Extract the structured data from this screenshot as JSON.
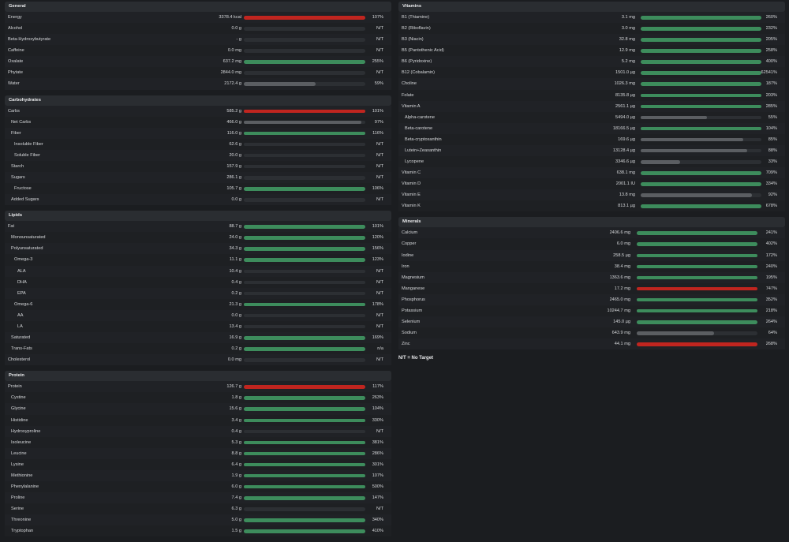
{
  "left_sections": [
    {
      "title": "General",
      "key": "general",
      "rows": [
        {
          "label": "Energy",
          "indent": 0,
          "value": "3378.4 kcal",
          "pct": "107%",
          "fill": 1.0,
          "color": "red"
        },
        {
          "label": "Alcohol",
          "indent": 0,
          "value": "0.0 g",
          "pct": "N/T",
          "fill": 0,
          "color": "none"
        },
        {
          "label": "Beta-Hydroxybutyrate",
          "indent": 0,
          "value": "- g",
          "pct": "N/T",
          "fill": 0,
          "color": "none"
        },
        {
          "label": "Caffeine",
          "indent": 0,
          "value": "0.0 mg",
          "pct": "N/T",
          "fill": 0,
          "color": "none"
        },
        {
          "label": "Oxalate",
          "indent": 0,
          "value": "637.2 mg",
          "pct": "255%",
          "fill": 1.0,
          "color": "green"
        },
        {
          "label": "Phytate",
          "indent": 0,
          "value": "2844.0 mg",
          "pct": "N/T",
          "fill": 0,
          "color": "none"
        },
        {
          "label": "Water",
          "indent": 0,
          "value": "2172.4 g",
          "pct": "59%",
          "fill": 0.59,
          "color": "gray"
        }
      ]
    },
    {
      "title": "Carbohydrates",
      "key": "carbs",
      "rows": [
        {
          "label": "Carbs",
          "indent": 0,
          "value": "585.2 g",
          "pct": "101%",
          "fill": 1.0,
          "color": "red"
        },
        {
          "label": "Net Carbs",
          "indent": 1,
          "value": "466.0 g",
          "pct": "97%",
          "fill": 0.97,
          "color": "gray"
        },
        {
          "label": "Fiber",
          "indent": 1,
          "value": "116.0 g",
          "pct": "116%",
          "fill": 1.0,
          "color": "green"
        },
        {
          "label": "Insoluble Fiber",
          "indent": 2,
          "value": "62.6 g",
          "pct": "N/T",
          "fill": 0,
          "color": "none"
        },
        {
          "label": "Soluble Fiber",
          "indent": 2,
          "value": "20.0 g",
          "pct": "N/T",
          "fill": 0,
          "color": "none"
        },
        {
          "label": "Starch",
          "indent": 1,
          "value": "157.9 g",
          "pct": "N/T",
          "fill": 0,
          "color": "none"
        },
        {
          "label": "Sugars",
          "indent": 1,
          "value": "286.1 g",
          "pct": "N/T",
          "fill": 0,
          "color": "none"
        },
        {
          "label": "Fructose",
          "indent": 2,
          "value": "105.7 g",
          "pct": "106%",
          "fill": 1.0,
          "color": "green"
        },
        {
          "label": "Added Sugars",
          "indent": 1,
          "value": "0.0 g",
          "pct": "N/T",
          "fill": 0,
          "color": "none"
        }
      ]
    },
    {
      "title": "Lipids",
      "key": "lipids",
      "rows": [
        {
          "label": "Fat",
          "indent": 0,
          "value": "88.7 g",
          "pct": "101%",
          "fill": 1.0,
          "color": "green"
        },
        {
          "label": "Monounsaturated",
          "indent": 1,
          "value": "24.0 g",
          "pct": "120%",
          "fill": 1.0,
          "color": "green"
        },
        {
          "label": "Polyunsaturated",
          "indent": 1,
          "value": "34.3 g",
          "pct": "156%",
          "fill": 1.0,
          "color": "green"
        },
        {
          "label": "Omega-3",
          "indent": 2,
          "value": "11.1 g",
          "pct": "123%",
          "fill": 1.0,
          "color": "green"
        },
        {
          "label": "ALA",
          "indent": 3,
          "value": "10.4 g",
          "pct": "N/T",
          "fill": 0,
          "color": "none"
        },
        {
          "label": "DHA",
          "indent": 3,
          "value": "0.4 g",
          "pct": "N/T",
          "fill": 0,
          "color": "none"
        },
        {
          "label": "EPA",
          "indent": 3,
          "value": "0.2 g",
          "pct": "N/T",
          "fill": 0,
          "color": "none"
        },
        {
          "label": "Omega-6",
          "indent": 2,
          "value": "21.3 g",
          "pct": "178%",
          "fill": 1.0,
          "color": "green"
        },
        {
          "label": "AA",
          "indent": 3,
          "value": "0.0 g",
          "pct": "N/T",
          "fill": 0,
          "color": "none"
        },
        {
          "label": "LA",
          "indent": 3,
          "value": "13.4 g",
          "pct": "N/T",
          "fill": 0,
          "color": "none"
        },
        {
          "label": "Saturated",
          "indent": 1,
          "value": "16.9 g",
          "pct": "169%",
          "fill": 1.0,
          "color": "green"
        },
        {
          "label": "Trans-Fats",
          "indent": 1,
          "value": "0.2 g",
          "pct": "n/a",
          "fill": 1.0,
          "color": "green"
        },
        {
          "label": "Cholesterol",
          "indent": 0,
          "value": "0.0 mg",
          "pct": "N/T",
          "fill": 0,
          "color": "none"
        }
      ]
    },
    {
      "title": "Protein",
      "key": "protein",
      "rows": [
        {
          "label": "Protein",
          "indent": 0,
          "value": "126.7 g",
          "pct": "117%",
          "fill": 1.0,
          "color": "red"
        },
        {
          "label": "Cystine",
          "indent": 1,
          "value": "1.8 g",
          "pct": "263%",
          "fill": 1.0,
          "color": "green"
        },
        {
          "label": "Glycine",
          "indent": 1,
          "value": "15.6 g",
          "pct": "104%",
          "fill": 1.0,
          "color": "green"
        },
        {
          "label": "Histidine",
          "indent": 1,
          "value": "3.4 g",
          "pct": "330%",
          "fill": 1.0,
          "color": "green"
        },
        {
          "label": "Hydroxyproline",
          "indent": 1,
          "value": "0.4 g",
          "pct": "N/T",
          "fill": 0,
          "color": "none"
        },
        {
          "label": "Isoleucine",
          "indent": 1,
          "value": "5.3 g",
          "pct": "381%",
          "fill": 1.0,
          "color": "green"
        },
        {
          "label": "Leucine",
          "indent": 1,
          "value": "8.8 g",
          "pct": "286%",
          "fill": 1.0,
          "color": "green"
        },
        {
          "label": "Lysine",
          "indent": 1,
          "value": "6.4 g",
          "pct": "301%",
          "fill": 1.0,
          "color": "green"
        },
        {
          "label": "Methionine",
          "indent": 1,
          "value": "1.9 g",
          "pct": "107%",
          "fill": 1.0,
          "color": "green"
        },
        {
          "label": "Phenylalanine",
          "indent": 1,
          "value": "6.0 g",
          "pct": "500%",
          "fill": 1.0,
          "color": "green"
        },
        {
          "label": "Proline",
          "indent": 1,
          "value": "7.4 g",
          "pct": "147%",
          "fill": 1.0,
          "color": "green"
        },
        {
          "label": "Serine",
          "indent": 1,
          "value": "6.3 g",
          "pct": "N/T",
          "fill": 0,
          "color": "none"
        },
        {
          "label": "Threonine",
          "indent": 1,
          "value": "5.0 g",
          "pct": "340%",
          "fill": 1.0,
          "color": "green"
        },
        {
          "label": "Tryptophan",
          "indent": 1,
          "value": "1.5 g",
          "pct": "410%",
          "fill": 1.0,
          "color": "green"
        }
      ]
    }
  ],
  "right_sections": [
    {
      "title": "Vitamins",
      "key": "vitamins",
      "rows": [
        {
          "label": "B1 (Thiamine)",
          "indent": 0,
          "value": "3.1 mg",
          "pct": "260%",
          "fill": 1.0,
          "color": "green"
        },
        {
          "label": "B2 (Riboflavin)",
          "indent": 0,
          "value": "3.0 mg",
          "pct": "232%",
          "fill": 1.0,
          "color": "green"
        },
        {
          "label": "B3 (Niacin)",
          "indent": 0,
          "value": "32.8 mg",
          "pct": "205%",
          "fill": 1.0,
          "color": "green"
        },
        {
          "label": "B5 (Pantothenic Acid)",
          "indent": 0,
          "value": "12.9 mg",
          "pct": "258%",
          "fill": 1.0,
          "color": "green"
        },
        {
          "label": "B6 (Pyridoxine)",
          "indent": 0,
          "value": "5.2 mg",
          "pct": "400%",
          "fill": 1.0,
          "color": "green"
        },
        {
          "label": "B12 (Cobalamin)",
          "indent": 0,
          "value": "1501.0 µg",
          "pct": "62541%",
          "fill": 1.0,
          "color": "green"
        },
        {
          "label": "Choline",
          "indent": 0,
          "value": "1026.3 mg",
          "pct": "187%",
          "fill": 1.0,
          "color": "green"
        },
        {
          "label": "Folate",
          "indent": 0,
          "value": "8135.8 µg",
          "pct": "203%",
          "fill": 1.0,
          "color": "green"
        },
        {
          "label": "Vitamin A",
          "indent": 0,
          "value": "2561.1 µg",
          "pct": "285%",
          "fill": 1.0,
          "color": "green"
        },
        {
          "label": "Alpha-carotene",
          "indent": 1,
          "value": "5494.0 µg",
          "pct": "55%",
          "fill": 0.55,
          "color": "gray"
        },
        {
          "label": "Beta-carotene",
          "indent": 1,
          "value": "18166.5 µg",
          "pct": "104%",
          "fill": 1.0,
          "color": "green"
        },
        {
          "label": "Beta-cryptoxanthin",
          "indent": 1,
          "value": "169.6 µg",
          "pct": "85%",
          "fill": 0.85,
          "color": "gray"
        },
        {
          "label": "Lutein+Zeaxanthin",
          "indent": 1,
          "value": "13128.4 µg",
          "pct": "88%",
          "fill": 0.88,
          "color": "gray"
        },
        {
          "label": "Lycopene",
          "indent": 1,
          "value": "3346.6 µg",
          "pct": "33%",
          "fill": 0.33,
          "color": "gray"
        },
        {
          "label": "Vitamin C",
          "indent": 0,
          "value": "638.1 mg",
          "pct": "709%",
          "fill": 1.0,
          "color": "green"
        },
        {
          "label": "Vitamin D",
          "indent": 0,
          "value": "2001.1 IU",
          "pct": "334%",
          "fill": 1.0,
          "color": "green"
        },
        {
          "label": "Vitamin E",
          "indent": 0,
          "value": "13.8 mg",
          "pct": "92%",
          "fill": 0.92,
          "color": "gray"
        },
        {
          "label": "Vitamin K",
          "indent": 0,
          "value": "813.1 µg",
          "pct": "678%",
          "fill": 1.0,
          "color": "green"
        }
      ]
    },
    {
      "title": "Minerals",
      "key": "minerals",
      "rows": [
        {
          "label": "Calcium",
          "indent": 0,
          "value": "2406.6 mg",
          "pct": "241%",
          "fill": 1.0,
          "color": "green"
        },
        {
          "label": "Copper",
          "indent": 0,
          "value": "6.0 mg",
          "pct": "402%",
          "fill": 1.0,
          "color": "green"
        },
        {
          "label": "Iodine",
          "indent": 0,
          "value": "258.5 µg",
          "pct": "172%",
          "fill": 1.0,
          "color": "green"
        },
        {
          "label": "Iron",
          "indent": 0,
          "value": "38.4 mg",
          "pct": "240%",
          "fill": 1.0,
          "color": "green"
        },
        {
          "label": "Magnesium",
          "indent": 0,
          "value": "1363.6 mg",
          "pct": "195%",
          "fill": 1.0,
          "color": "green"
        },
        {
          "label": "Manganese",
          "indent": 0,
          "value": "17.2 mg",
          "pct": "747%",
          "fill": 1.0,
          "color": "red"
        },
        {
          "label": "Phosphorus",
          "indent": 0,
          "value": "2465.0 mg",
          "pct": "352%",
          "fill": 1.0,
          "color": "green"
        },
        {
          "label": "Potassium",
          "indent": 0,
          "value": "10244.7 mg",
          "pct": "218%",
          "fill": 1.0,
          "color": "green"
        },
        {
          "label": "Selenium",
          "indent": 0,
          "value": "145.0 µg",
          "pct": "264%",
          "fill": 1.0,
          "color": "green"
        },
        {
          "label": "Sodium",
          "indent": 0,
          "value": "643.9 mg",
          "pct": "64%",
          "fill": 0.64,
          "color": "gray"
        },
        {
          "label": "Zinc",
          "indent": 0,
          "value": "44.1 mg",
          "pct": "268%",
          "fill": 1.0,
          "color": "red"
        }
      ]
    }
  ],
  "legend": "N/T = No Target",
  "colors": {
    "green": "#3d8c5c",
    "red": "#c0251f",
    "gray": "#5b5e62",
    "track": "#2c2f33"
  }
}
